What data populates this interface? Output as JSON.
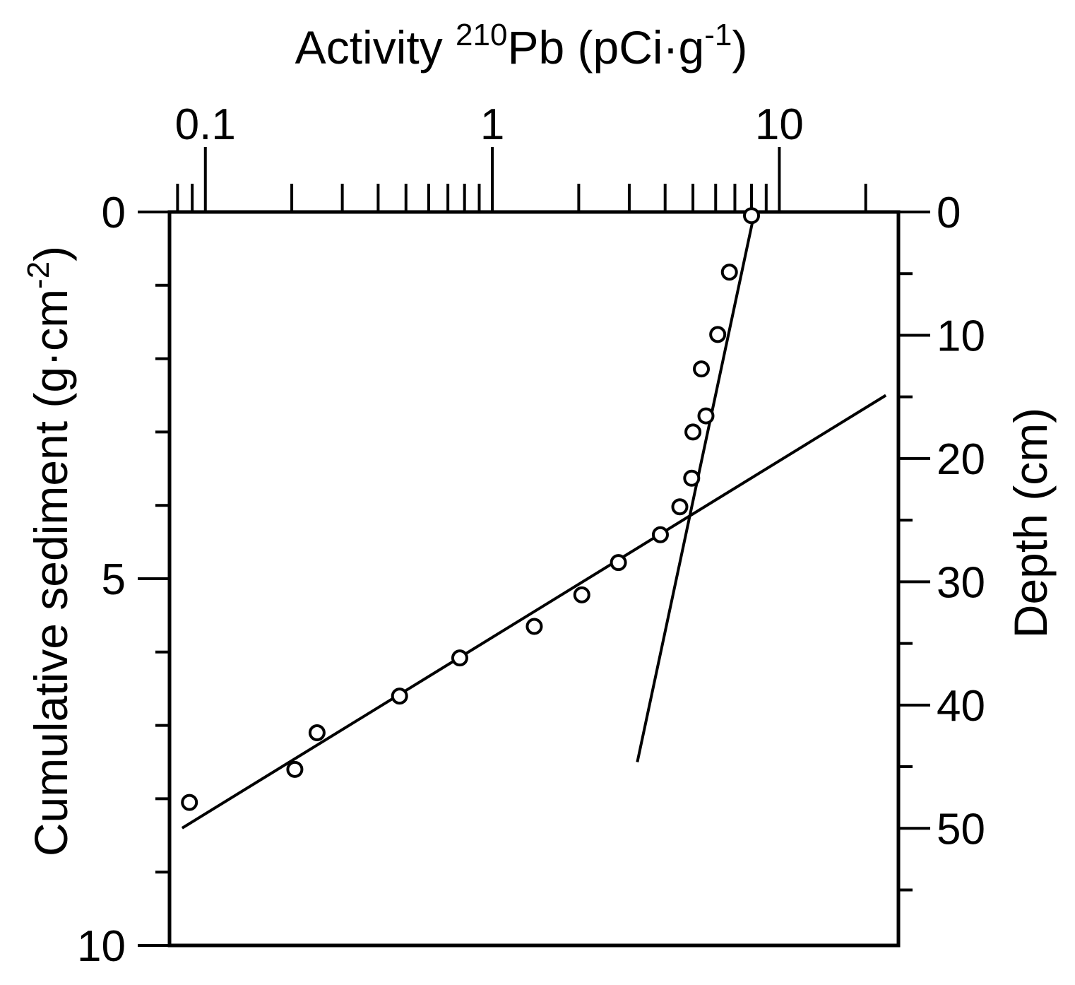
{
  "chart_data": {
    "type": "scatter",
    "title": "",
    "x_axis": {
      "label": "Activity ",
      "label_sup": "210",
      "label_mid": "Pb (pCi·g",
      "label_sup2": "-1",
      "label_end": ")",
      "scale": "log",
      "range": [
        0.075,
        26
      ],
      "ticks": [
        {
          "value": 0.1,
          "text": "0.1"
        },
        {
          "value": 1,
          "text": "1"
        },
        {
          "value": 10,
          "text": "10"
        }
      ]
    },
    "y_axis_left": {
      "label": "Cumulative sediment (g·cm",
      "label_sup": "-2",
      "label_end": ")",
      "range": [
        0,
        10
      ],
      "ticks": [
        {
          "value": 0,
          "text": "0"
        },
        {
          "value": 5,
          "text": "5"
        },
        {
          "value": 10,
          "text": "10"
        }
      ]
    },
    "y_axis_right": {
      "label": "Depth (cm)",
      "range": [
        0,
        59.5
      ],
      "ticks": [
        {
          "value": 0,
          "text": "0"
        },
        {
          "value": 10,
          "text": "10"
        },
        {
          "value": 20,
          "text": "20"
        },
        {
          "value": 30,
          "text": "30"
        },
        {
          "value": 40,
          "text": "40"
        },
        {
          "value": 50,
          "text": "50"
        }
      ]
    },
    "points": [
      {
        "x": 8.0,
        "y": 0.05
      },
      {
        "x": 6.7,
        "y": 0.82
      },
      {
        "x": 6.1,
        "y": 1.67
      },
      {
        "x": 5.35,
        "y": 2.14
      },
      {
        "x": 5.55,
        "y": 2.78
      },
      {
        "x": 5.0,
        "y": 3.0
      },
      {
        "x": 4.95,
        "y": 3.63
      },
      {
        "x": 4.5,
        "y": 4.02
      },
      {
        "x": 3.85,
        "y": 4.4
      },
      {
        "x": 2.75,
        "y": 4.78
      },
      {
        "x": 2.05,
        "y": 5.22
      },
      {
        "x": 1.4,
        "y": 5.65
      },
      {
        "x": 0.77,
        "y": 6.08
      },
      {
        "x": 0.475,
        "y": 6.6
      },
      {
        "x": 0.245,
        "y": 7.1
      },
      {
        "x": 0.205,
        "y": 7.6
      },
      {
        "x": 0.088,
        "y": 8.05
      }
    ],
    "fit_lines": [
      {
        "name": "upper",
        "x": [
          8.2,
          3.2
        ],
        "y": [
          0.0,
          7.5
        ]
      },
      {
        "name": "lower",
        "x": [
          23.5,
          0.083
        ],
        "y": [
          2.5,
          8.4
        ]
      }
    ]
  }
}
